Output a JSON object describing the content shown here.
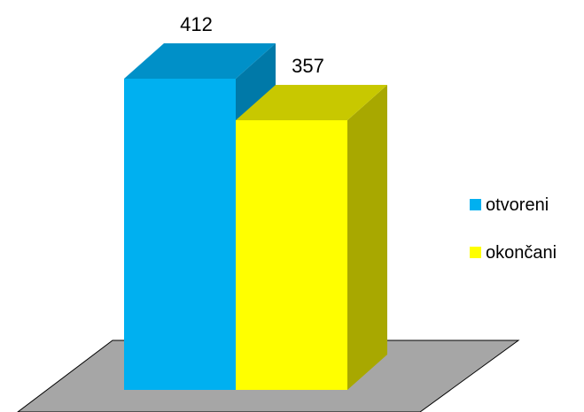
{
  "chart_data": {
    "type": "bar",
    "categories": [
      ""
    ],
    "series": [
      {
        "name": "otvoreni",
        "values": [
          412
        ],
        "color": "#00B0F0",
        "side_color": "#0079A8",
        "top_color": "#0090C8"
      },
      {
        "name": "okončani",
        "values": [
          357
        ],
        "color": "#FFFF00",
        "side_color": "#A8A800",
        "top_color": "#C8C800"
      }
    ],
    "title": "",
    "xlabel": "",
    "ylabel": "",
    "ylim": [
      0,
      412
    ],
    "grid": false,
    "legend_position": "right",
    "floor_color": "#A6A6A6",
    "data_labels": true
  }
}
